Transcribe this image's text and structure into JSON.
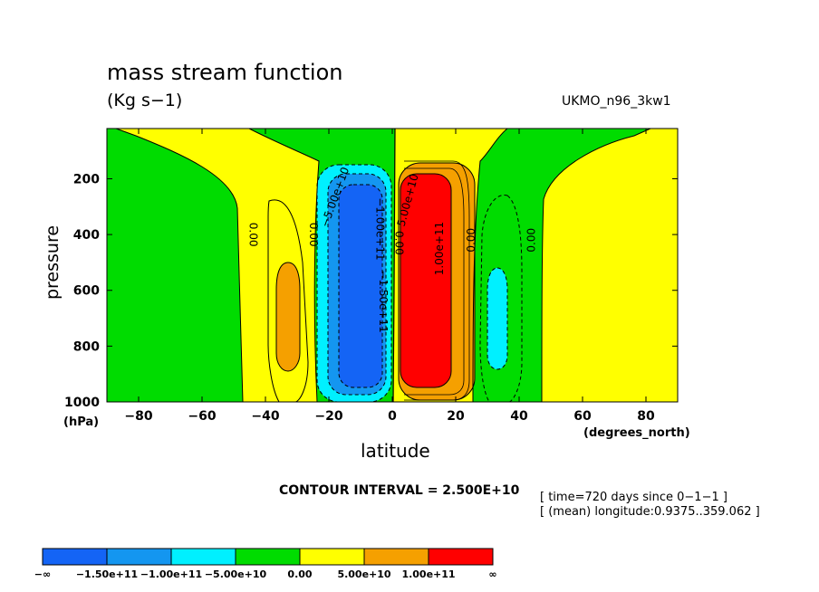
{
  "header": {
    "title": "mass stream function",
    "subtitle": "(Kg s−1)",
    "dataset": "UKMO_n96_3kw1"
  },
  "axes": {
    "ylabel": "pressure",
    "yunit": "(hPa)",
    "xlabel": "latitude",
    "xunit": "(degrees_north)"
  },
  "info": {
    "contour_interval": "CONTOUR INTERVAL = 2.500E+10",
    "time": "[ time=720 days since 0−1−1 ]",
    "longitude": "[ (mean) longitude:0.9375..359.062 ]"
  },
  "colors": {
    "blue": "#1464f5",
    "mid_blue": "#1496f0",
    "cyan": "#00f0ff",
    "green": "#00dc00",
    "yellow": "#ffff00",
    "orange": "#f5a000",
    "red": "#ff0000"
  },
  "chart_data": {
    "type": "contour",
    "title": "mass stream function",
    "subtitle": "(Kg s−1)",
    "xlabel": "latitude",
    "ylabel": "pressure",
    "xlim": [
      -90,
      90
    ],
    "ylim": [
      1000,
      20
    ],
    "x_ticks": [
      -80,
      -60,
      -40,
      -20,
      0,
      20,
      40,
      60,
      80
    ],
    "x_tick_labels": [
      "−80",
      "−60",
      "−40",
      "−20",
      "0",
      "20",
      "40",
      "60",
      "80"
    ],
    "y_ticks": [
      200,
      400,
      600,
      800,
      1000
    ],
    "y_tick_labels": [
      "200",
      "400",
      "600",
      "800",
      "1000"
    ],
    "contour_interval": 25000000000,
    "colorbar": {
      "colors": [
        "#1464f5",
        "#1496f0",
        "#00f0ff",
        "#00dc00",
        "#ffff00",
        "#f5a000",
        "#ff0000"
      ],
      "labels": [
        "−∞",
        "−1.50e+11",
        "−1.00e+11",
        "−5.00e+10",
        "0.00",
        "5.00e+10",
        "1.00e+11",
        "∞"
      ]
    },
    "contour_labels": [
      {
        "text": "0.00",
        "lat": -45,
        "p": 400,
        "rot": 90
      },
      {
        "text": "0.00",
        "lat": -26,
        "p": 400,
        "rot": 90
      },
      {
        "text": "−5.00e+10",
        "lat": -17,
        "p": 270,
        "rot": -70
      },
      {
        "text": "−1.50e+11",
        "lat": -4,
        "p": 640,
        "rot": 90
      },
      {
        "text": "−1.00e+11",
        "lat": -5,
        "p": 380,
        "rot": 90
      },
      {
        "text": "0.00",
        "lat": 1,
        "p": 430,
        "rot": 90
      },
      {
        "text": "5.00e+10",
        "lat": 6,
        "p": 280,
        "rot": -75
      },
      {
        "text": "1.00e+11",
        "lat": 16,
        "p": 450,
        "rot": -90
      },
      {
        "text": "0.00",
        "lat": 26,
        "p": 420,
        "rot": -90
      },
      {
        "text": "0.00",
        "lat": 45,
        "p": 420,
        "rot": -90
      }
    ]
  }
}
